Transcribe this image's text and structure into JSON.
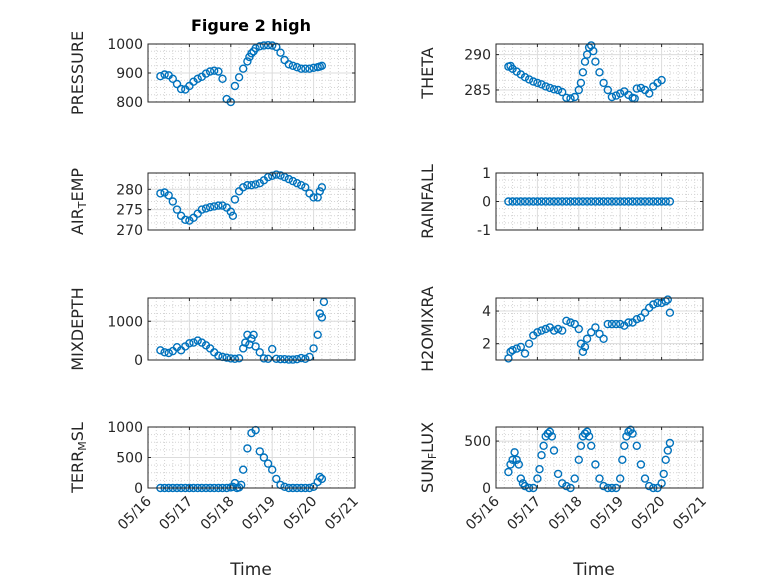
{
  "chart_data": {
    "type": "scatter",
    "title": "Figure 2 high",
    "xlabel": "Time",
    "x_ticks": [
      "05/16",
      "05/17",
      "05/18",
      "05/19",
      "05/20",
      "05/21"
    ],
    "x_lim": [
      0,
      5
    ],
    "marker_color": "#0072BD",
    "marker": "open-circle",
    "grid": true,
    "panels": [
      {
        "ylabel": "PRESSURE",
        "ylim": [
          800,
          1000
        ],
        "yticks": [
          800,
          900,
          1000
        ],
        "x": [
          0.3,
          0.4,
          0.5,
          0.6,
          0.7,
          0.8,
          0.9,
          1.0,
          1.1,
          1.2,
          1.3,
          1.4,
          1.5,
          1.6,
          1.7,
          1.8,
          1.9,
          2.0,
          2.1,
          2.2,
          2.3,
          2.4,
          2.45,
          2.5,
          2.55,
          2.6,
          2.7,
          2.8,
          2.9,
          3.0,
          3.1,
          3.2,
          3.3,
          3.4,
          3.5,
          3.6,
          3.7,
          3.8,
          3.9,
          4.0,
          4.1,
          4.15,
          4.2
        ],
        "y": [
          889,
          895,
          892,
          880,
          862,
          845,
          843,
          855,
          870,
          880,
          887,
          898,
          905,
          908,
          905,
          880,
          810,
          800,
          855,
          885,
          915,
          940,
          955,
          968,
          975,
          985,
          992,
          995,
          996,
          995,
          990,
          970,
          945,
          930,
          925,
          920,
          915,
          915,
          915,
          918,
          920,
          922,
          925
        ]
      },
      {
        "ylabel": "THETA",
        "ylim": [
          283.3,
          291.5
        ],
        "yticks": [
          285,
          290
        ],
        "x": [
          0.3,
          0.35,
          0.4,
          0.5,
          0.6,
          0.7,
          0.8,
          0.9,
          1.0,
          1.1,
          1.2,
          1.3,
          1.4,
          1.5,
          1.6,
          1.7,
          1.8,
          1.9,
          2.0,
          2.05,
          2.1,
          2.15,
          2.2,
          2.25,
          2.3,
          2.35,
          2.4,
          2.5,
          2.6,
          2.7,
          2.8,
          2.9,
          3.0,
          3.1,
          3.2,
          3.3,
          3.35,
          3.4,
          3.5,
          3.6,
          3.7,
          3.8,
          3.9,
          4.0
        ],
        "y": [
          288.3,
          288.4,
          288.0,
          287.6,
          287.2,
          286.8,
          286.5,
          286.2,
          286.0,
          285.8,
          285.5,
          285.3,
          285.1,
          285.0,
          284.7,
          283.9,
          283.8,
          284.0,
          285.0,
          286.0,
          287.5,
          289.0,
          290.0,
          291.0,
          291.3,
          290.5,
          289.0,
          287.5,
          286.0,
          285.0,
          284.0,
          284.2,
          284.5,
          284.8,
          284.3,
          283.9,
          283.8,
          285.2,
          285.3,
          285.0,
          284.5,
          285.5,
          286.0,
          286.4
        ]
      },
      {
        "ylabel": "AIR_TEMP",
        "ylim": [
          270,
          284
        ],
        "yticks": [
          270,
          275,
          280
        ],
        "x": [
          0.3,
          0.4,
          0.5,
          0.6,
          0.7,
          0.8,
          0.9,
          1.0,
          1.1,
          1.2,
          1.3,
          1.4,
          1.5,
          1.6,
          1.7,
          1.8,
          1.9,
          2.0,
          2.05,
          2.1,
          2.2,
          2.3,
          2.4,
          2.5,
          2.6,
          2.7,
          2.8,
          2.9,
          3.0,
          3.1,
          3.2,
          3.3,
          3.4,
          3.5,
          3.6,
          3.7,
          3.8,
          3.9,
          4.0,
          4.1,
          4.15,
          4.2
        ],
        "y": [
          279,
          279.2,
          278.5,
          277,
          275,
          273.5,
          272.5,
          272.3,
          273,
          274,
          275,
          275.3,
          275.6,
          275.8,
          276,
          276,
          275.5,
          274.5,
          273.5,
          277.5,
          279.5,
          280.5,
          281,
          281,
          281.2,
          281.5,
          282.2,
          283,
          283.3,
          283.6,
          283.4,
          283,
          282.5,
          282,
          281.5,
          281,
          280.5,
          279,
          278,
          278,
          279.5,
          280.5
        ]
      },
      {
        "ylabel": "RAINFALL",
        "ylim": [
          -1,
          1
        ],
        "yticks": [
          -1,
          0,
          1
        ],
        "x": [
          0.3,
          0.4,
          0.5,
          0.6,
          0.7,
          0.8,
          0.9,
          1.0,
          1.1,
          1.2,
          1.3,
          1.4,
          1.5,
          1.6,
          1.7,
          1.8,
          1.9,
          2.0,
          2.1,
          2.2,
          2.3,
          2.4,
          2.5,
          2.6,
          2.7,
          2.8,
          2.9,
          3.0,
          3.1,
          3.2,
          3.3,
          3.4,
          3.5,
          3.6,
          3.7,
          3.8,
          3.9,
          4.0,
          4.1,
          4.2
        ],
        "y": [
          0,
          0,
          0,
          0,
          0,
          0,
          0,
          0,
          0,
          0,
          0,
          0,
          0,
          0,
          0,
          0,
          0,
          0,
          0,
          0,
          0,
          0,
          0,
          0,
          0,
          0,
          0,
          0,
          0,
          0,
          0,
          0,
          0,
          0,
          0,
          0,
          0,
          0,
          0,
          0
        ]
      },
      {
        "ylabel": "MIXDEPTH",
        "ylim": [
          0,
          1600
        ],
        "yticks": [
          0,
          1000
        ],
        "x": [
          0.3,
          0.4,
          0.5,
          0.6,
          0.7,
          0.8,
          0.9,
          1.0,
          1.1,
          1.2,
          1.3,
          1.4,
          1.5,
          1.6,
          1.7,
          1.8,
          1.9,
          2.0,
          2.1,
          2.2,
          2.3,
          2.35,
          2.4,
          2.45,
          2.5,
          2.55,
          2.6,
          2.7,
          2.8,
          2.9,
          3.0,
          3.1,
          3.2,
          3.3,
          3.4,
          3.5,
          3.6,
          3.7,
          3.8,
          3.9,
          4.0,
          4.1,
          4.15,
          4.2,
          4.25
        ],
        "y": [
          250,
          200,
          180,
          230,
          330,
          250,
          350,
          430,
          450,
          500,
          450,
          380,
          300,
          200,
          110,
          80,
          60,
          40,
          30,
          45,
          300,
          450,
          650,
          400,
          550,
          650,
          350,
          200,
          40,
          30,
          280,
          30,
          20,
          20,
          10,
          10,
          20,
          50,
          30,
          80,
          300,
          650,
          1200,
          1100,
          1500
        ]
      },
      {
        "ylabel": "H2OMIXRA",
        "ylim": [
          1,
          4.8
        ],
        "yticks": [
          2,
          4
        ],
        "x": [
          0.3,
          0.35,
          0.4,
          0.5,
          0.6,
          0.7,
          0.8,
          0.9,
          1.0,
          1.1,
          1.2,
          1.3,
          1.4,
          1.5,
          1.6,
          1.7,
          1.8,
          1.9,
          2.0,
          2.05,
          2.1,
          2.15,
          2.2,
          2.3,
          2.4,
          2.5,
          2.6,
          2.7,
          2.8,
          2.9,
          3.0,
          3.1,
          3.2,
          3.3,
          3.4,
          3.5,
          3.6,
          3.7,
          3.8,
          3.9,
          4.0,
          4.1,
          4.15,
          4.2
        ],
        "y": [
          1.1,
          1.5,
          1.6,
          1.7,
          1.8,
          1.4,
          2.0,
          2.5,
          2.7,
          2.8,
          2.9,
          3.0,
          2.8,
          2.9,
          2.8,
          3.4,
          3.3,
          3.2,
          2.9,
          2.0,
          1.5,
          1.8,
          2.3,
          2.7,
          3.0,
          2.6,
          2.3,
          3.2,
          3.2,
          3.2,
          3.2,
          3.1,
          3.3,
          3.3,
          3.5,
          3.6,
          3.9,
          4.2,
          4.4,
          4.5,
          4.5,
          4.6,
          4.7,
          3.9
        ]
      },
      {
        "ylabel": "TERR_MSL",
        "ylim": [
          0,
          1000
        ],
        "yticks": [
          0,
          500,
          1000
        ],
        "x": [
          0.3,
          0.4,
          0.5,
          0.6,
          0.7,
          0.8,
          0.9,
          1.0,
          1.1,
          1.2,
          1.3,
          1.4,
          1.5,
          1.6,
          1.7,
          1.8,
          1.9,
          2.0,
          2.05,
          2.1,
          2.15,
          2.2,
          2.25,
          2.3,
          2.4,
          2.5,
          2.6,
          2.7,
          2.8,
          2.9,
          3.0,
          3.1,
          3.2,
          3.3,
          3.4,
          3.5,
          3.6,
          3.7,
          3.8,
          3.9,
          4.0,
          4.1,
          4.15,
          4.2
        ],
        "y": [
          0,
          0,
          0,
          0,
          0,
          0,
          0,
          0,
          0,
          0,
          0,
          0,
          0,
          0,
          0,
          0,
          0,
          10,
          20,
          80,
          0,
          10,
          50,
          300,
          650,
          900,
          950,
          600,
          500,
          400,
          300,
          150,
          50,
          20,
          0,
          0,
          0,
          0,
          0,
          0,
          20,
          100,
          180,
          150
        ]
      },
      {
        "ylabel": "SUN_FLUX",
        "ylim": [
          0,
          650
        ],
        "yticks": [
          0,
          500
        ],
        "x": [
          0.3,
          0.35,
          0.4,
          0.45,
          0.5,
          0.55,
          0.6,
          0.65,
          0.7,
          0.8,
          0.9,
          1.0,
          1.05,
          1.1,
          1.15,
          1.2,
          1.25,
          1.3,
          1.35,
          1.4,
          1.5,
          1.6,
          1.7,
          1.8,
          1.9,
          2.0,
          2.05,
          2.1,
          2.15,
          2.2,
          2.25,
          2.3,
          2.4,
          2.5,
          2.6,
          2.7,
          2.8,
          2.9,
          3.0,
          3.05,
          3.1,
          3.15,
          3.2,
          3.25,
          3.3,
          3.4,
          3.5,
          3.6,
          3.7,
          3.8,
          3.9,
          4.0,
          4.05,
          4.1,
          4.15,
          4.2
        ],
        "y": [
          170,
          250,
          300,
          380,
          300,
          250,
          100,
          50,
          20,
          0,
          0,
          100,
          200,
          350,
          450,
          550,
          580,
          600,
          550,
          400,
          150,
          50,
          20,
          0,
          100,
          300,
          450,
          550,
          580,
          600,
          550,
          450,
          250,
          100,
          20,
          0,
          0,
          0,
          100,
          300,
          450,
          550,
          600,
          620,
          580,
          450,
          250,
          100,
          20,
          0,
          0,
          50,
          150,
          300,
          400,
          480
        ]
      }
    ]
  }
}
